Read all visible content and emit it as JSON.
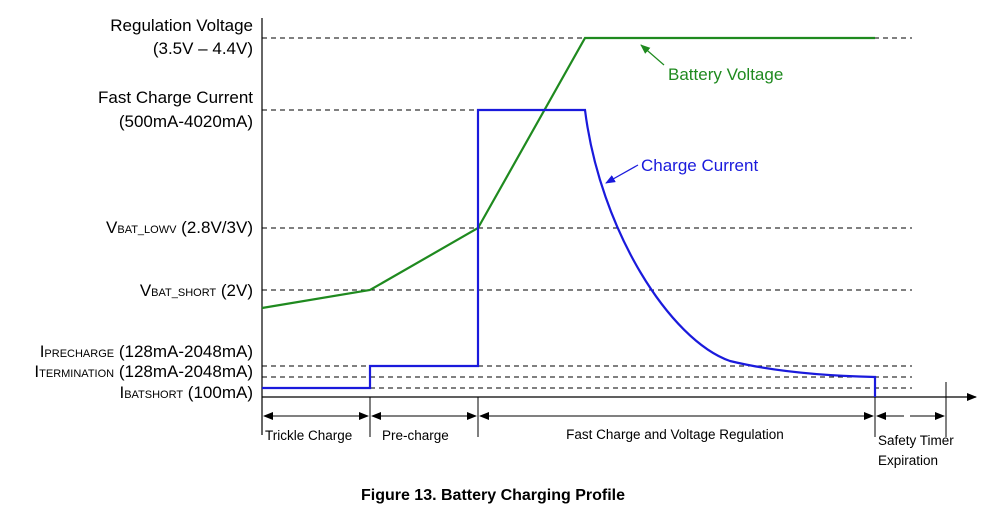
{
  "levels": {
    "regulation_voltage": {
      "title": "Regulation Voltage",
      "range": "(3.5V – 4.4V)"
    },
    "fast_charge_current": {
      "title": "Fast Charge Current",
      "range": "(500mA-4020mA)"
    },
    "vbat_lowv": {
      "symbol": "V",
      "subscript": "BAT_LOWV",
      "value": " (2.8V/3V)"
    },
    "vbat_short": {
      "symbol": "V",
      "subscript": "BAT_SHORT",
      "value": " (2V)"
    },
    "iprecharge": {
      "symbol": "I",
      "subscript": "PRECHARGE",
      "value": " (128mA-2048mA)"
    },
    "itermination": {
      "symbol": "I",
      "subscript": "TERMINATION",
      "value": " (128mA-2048mA)"
    },
    "ibatshort": {
      "symbol": "I",
      "subscript": "BATSHORT",
      "value": " (100mA)"
    }
  },
  "curves": {
    "battery_voltage": {
      "label": "Battery Voltage",
      "color": "#1f8a1f"
    },
    "charge_current": {
      "label": "Charge Current",
      "color": "#1a1adc"
    }
  },
  "phases": {
    "trickle": "Trickle Charge",
    "precharge": "Pre-charge",
    "fast": "Fast Charge and Voltage Regulation",
    "safety_line1": "Safety Timer",
    "safety_line2": "Expiration"
  },
  "caption": "Figure 13.  Battery Charging Profile"
}
